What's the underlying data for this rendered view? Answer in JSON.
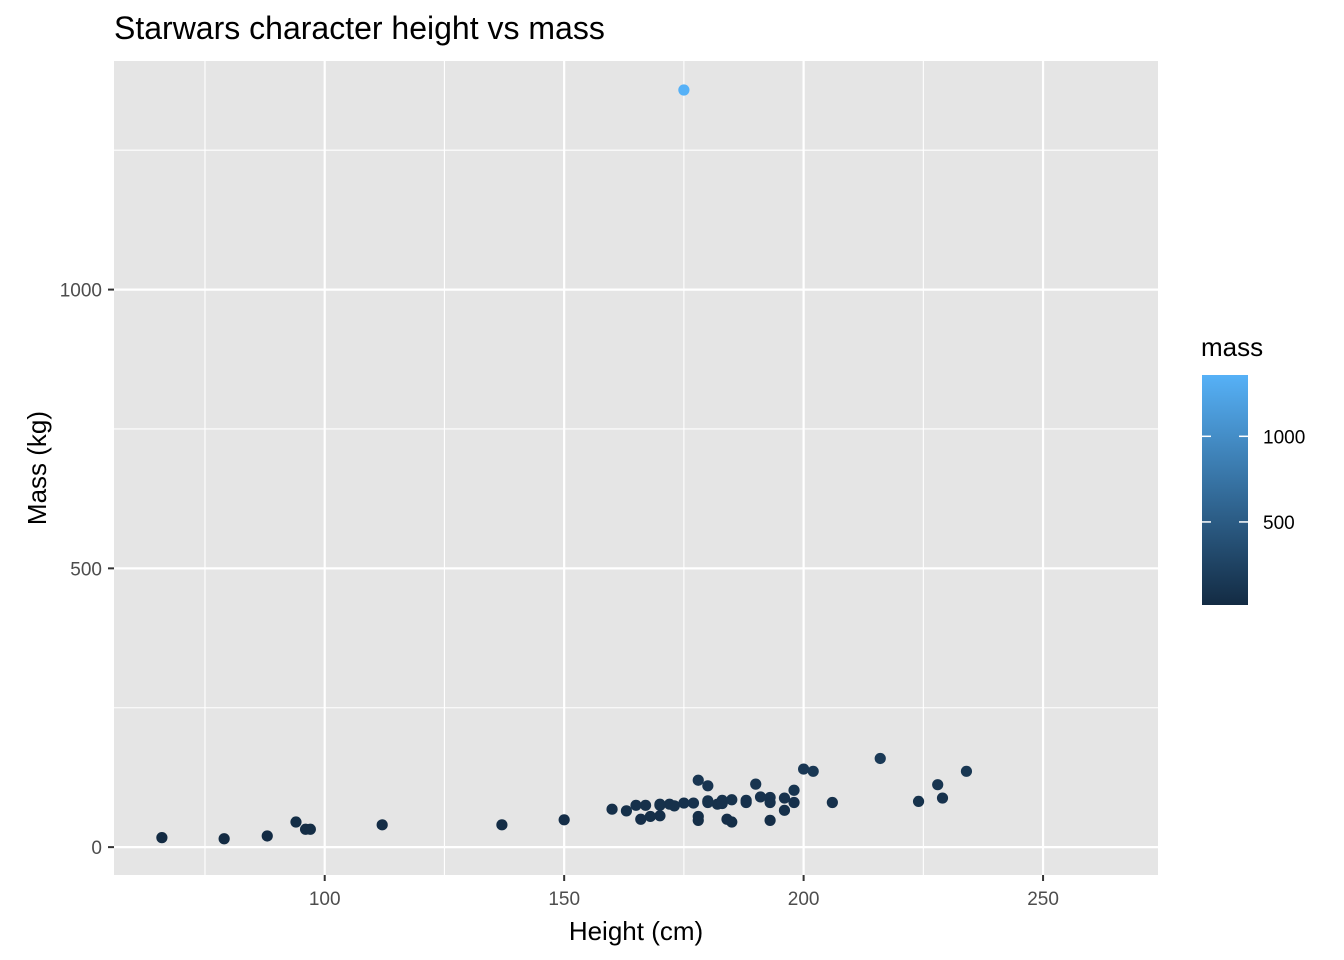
{
  "chart_data": {
    "type": "scatter",
    "title": "Starwars character height vs mass",
    "xlabel": "Height (cm)",
    "ylabel": "Mass (kg)",
    "xlim": [
      56,
      274
    ],
    "ylim": [
      -50,
      1410
    ],
    "x_ticks": [
      100,
      150,
      200,
      250
    ],
    "x_tick_labels": [
      "100",
      "150",
      "200",
      "250"
    ],
    "y_ticks": [
      0,
      500,
      1000
    ],
    "y_tick_labels": [
      "0",
      "500",
      "1000"
    ],
    "grid": true,
    "panel_background": "#e5e5e5",
    "grid_color": "#ffffff",
    "legend": {
      "title": "mass",
      "placement": "right",
      "type": "colorbar",
      "range": [
        15,
        1358
      ],
      "ticks": [
        500,
        1000
      ],
      "tick_labels": [
        "500",
        "1000"
      ],
      "low_color": "#132b43",
      "high_color": "#56b1f7"
    },
    "points": [
      {
        "x": 172,
        "y": 77
      },
      {
        "x": 167,
        "y": 75
      },
      {
        "x": 96,
        "y": 32
      },
      {
        "x": 202,
        "y": 136
      },
      {
        "x": 150,
        "y": 49
      },
      {
        "x": 178,
        "y": 120
      },
      {
        "x": 165,
        "y": 75
      },
      {
        "x": 97,
        "y": 32
      },
      {
        "x": 183,
        "y": 84
      },
      {
        "x": 182,
        "y": 77
      },
      {
        "x": 188,
        "y": 84
      },
      {
        "x": 228,
        "y": 112
      },
      {
        "x": 180,
        "y": 80
      },
      {
        "x": 173,
        "y": 74
      },
      {
        "x": 175,
        "y": 1358
      },
      {
        "x": 170,
        "y": 77
      },
      {
        "x": 180,
        "y": 110
      },
      {
        "x": 66,
        "y": 17
      },
      {
        "x": 170,
        "y": 75
      },
      {
        "x": 183,
        "y": 78.2
      },
      {
        "x": 200,
        "y": 140
      },
      {
        "x": 190,
        "y": 113
      },
      {
        "x": 177,
        "y": 79
      },
      {
        "x": 175,
        "y": 79
      },
      {
        "x": 180,
        "y": 83
      },
      {
        "x": 88,
        "y": 20
      },
      {
        "x": 160,
        "y": 68
      },
      {
        "x": 193,
        "y": 89
      },
      {
        "x": 191,
        "y": 90
      },
      {
        "x": 196,
        "y": 66
      },
      {
        "x": 224,
        "y": 82
      },
      {
        "x": 206,
        "y": 80
      },
      {
        "x": 137,
        "y": 40
      },
      {
        "x": 112,
        "y": 40
      },
      {
        "x": 183,
        "y": 80
      },
      {
        "x": 163,
        "y": 65
      },
      {
        "x": 94,
        "y": 45
      },
      {
        "x": 170,
        "y": 56.2
      },
      {
        "x": 178,
        "y": 55
      },
      {
        "x": 198,
        "y": 102
      },
      {
        "x": 196,
        "y": 88
      },
      {
        "x": 185,
        "y": 85
      },
      {
        "x": 234,
        "y": 136
      },
      {
        "x": 166,
        "y": 50
      },
      {
        "x": 168,
        "y": 55
      },
      {
        "x": 178,
        "y": 48
      },
      {
        "x": 188,
        "y": 80
      },
      {
        "x": 198,
        "y": 80
      },
      {
        "x": 193,
        "y": 80
      },
      {
        "x": 185,
        "y": 45
      },
      {
        "x": 216,
        "y": 159
      },
      {
        "x": 229,
        "y": 88
      },
      {
        "x": 184,
        "y": 50
      },
      {
        "x": 79,
        "y": 15
      },
      {
        "x": 193,
        "y": 48
      }
    ]
  }
}
